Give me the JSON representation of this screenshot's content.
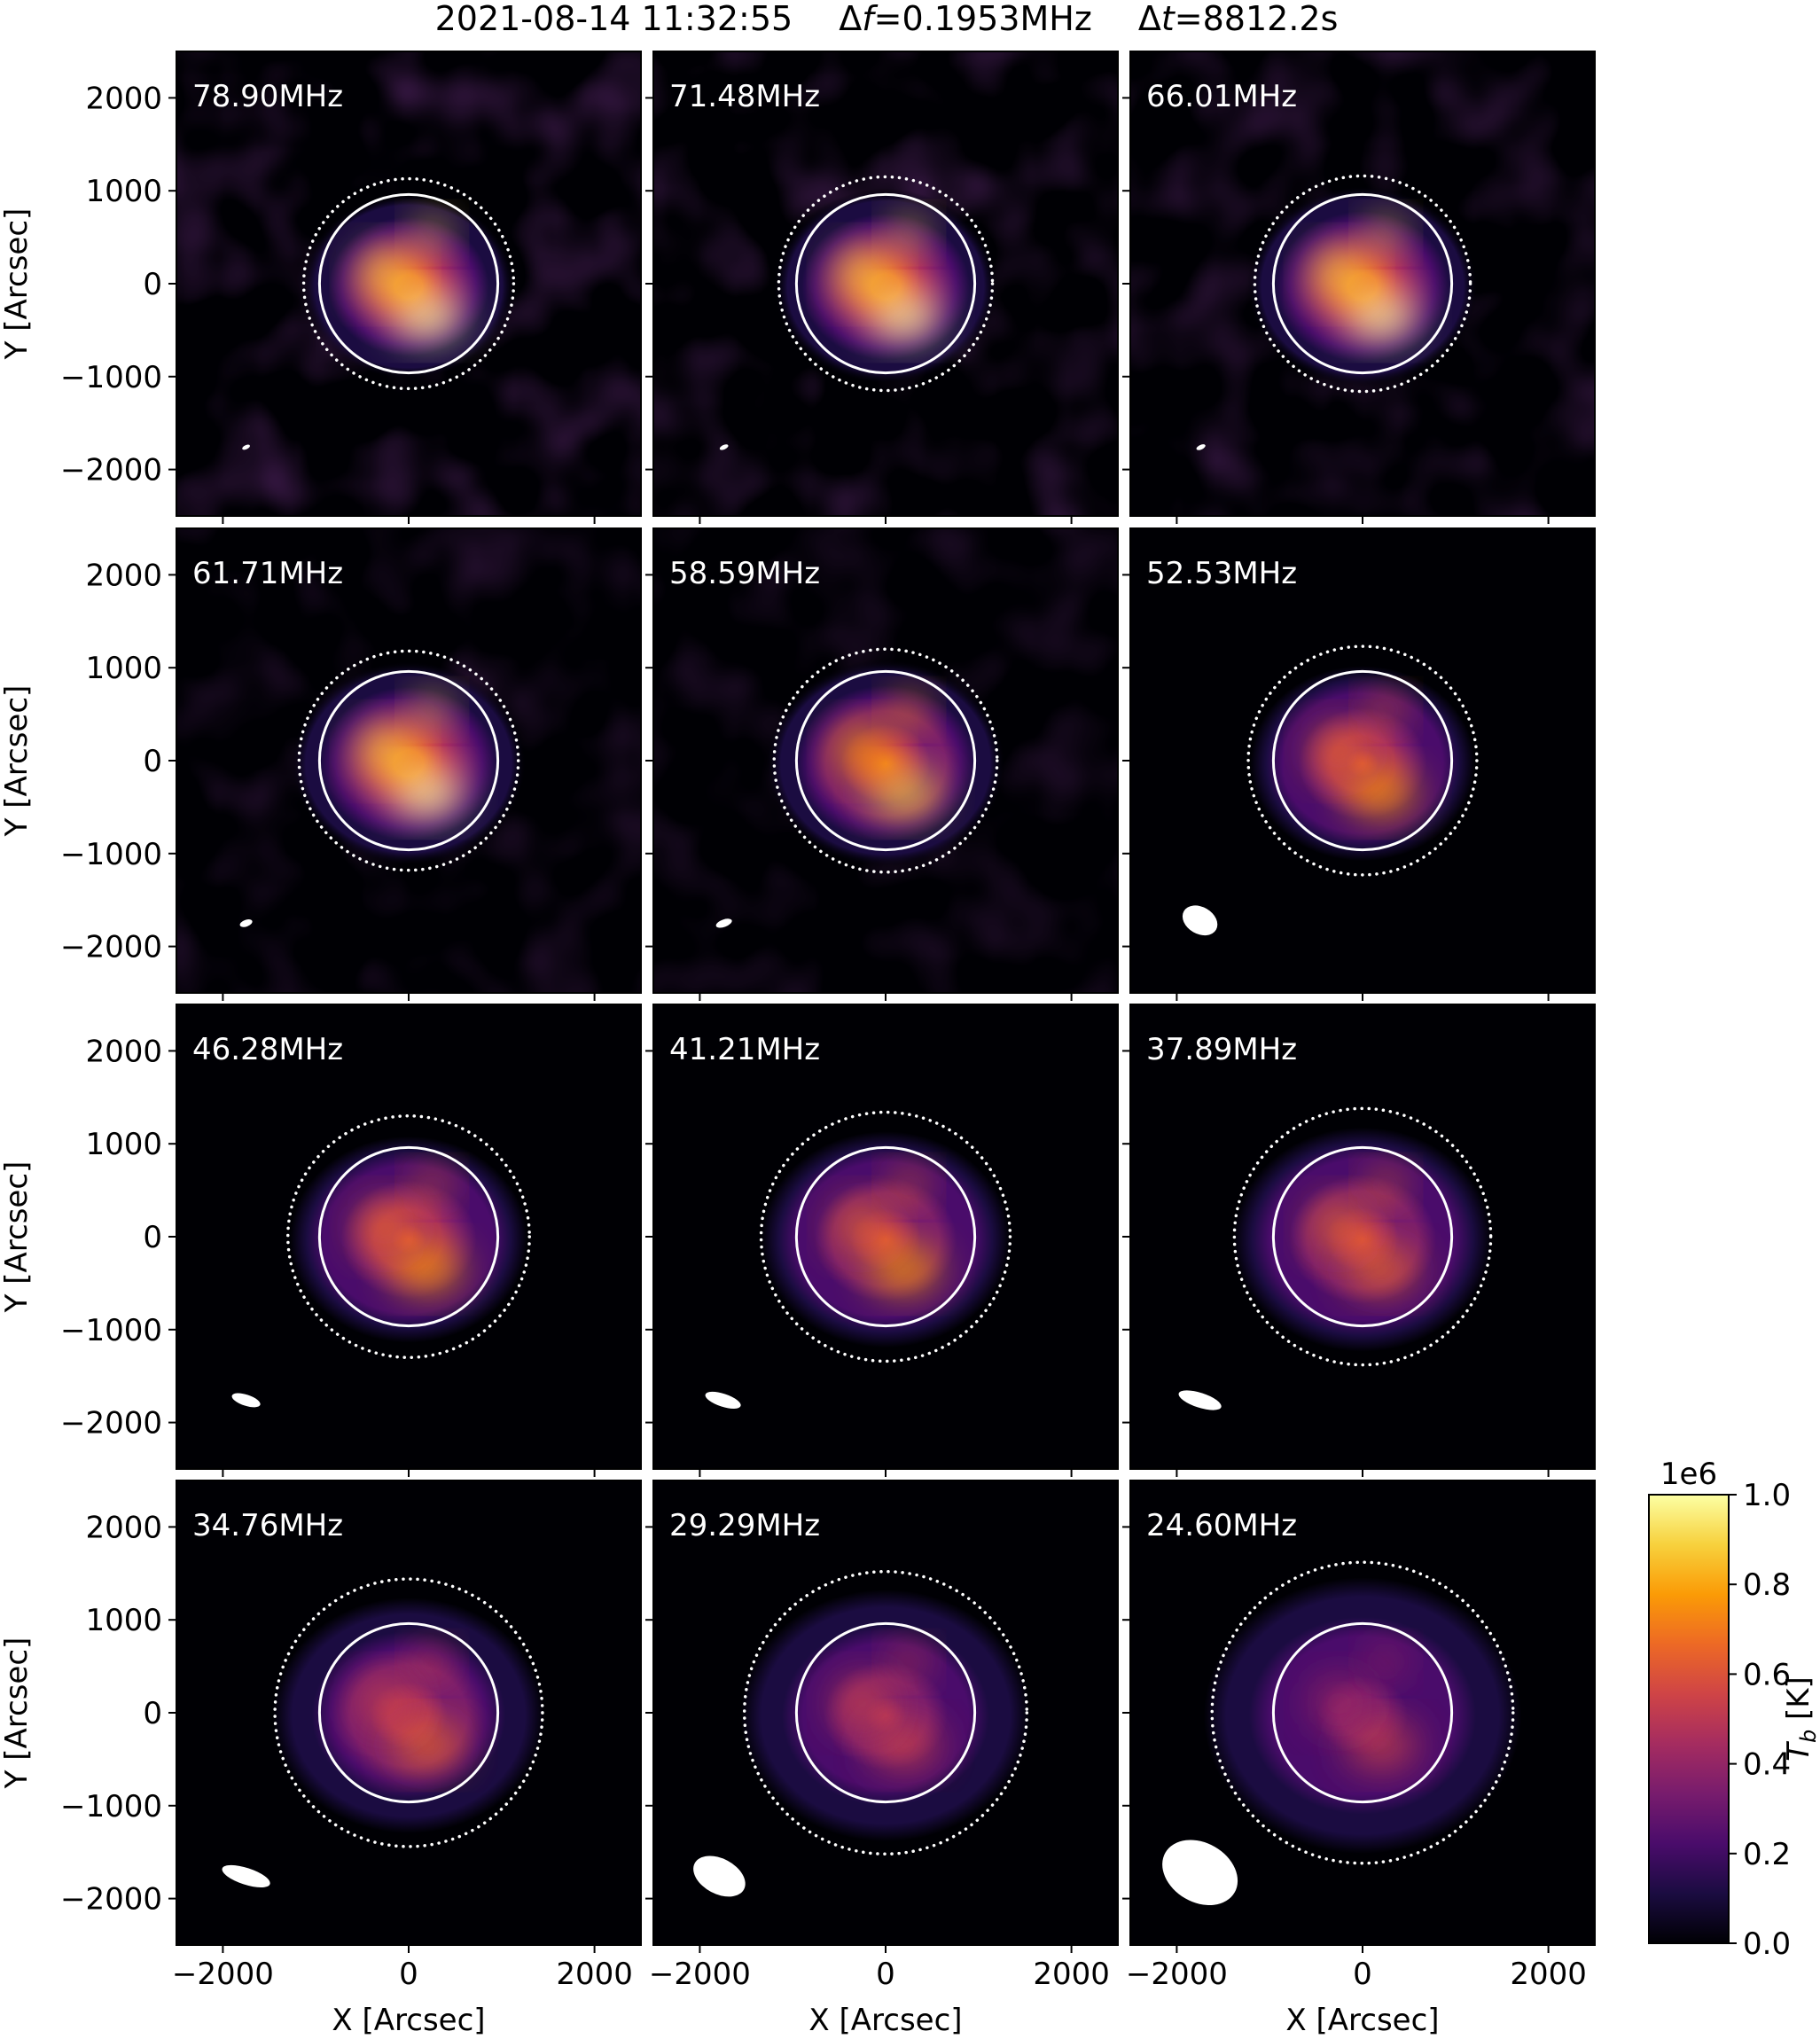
{
  "title": {
    "date": "2021-08-14 11:32:55",
    "df_symbol": "Δ",
    "df_var": "f",
    "df_value": "=0.1953MHz",
    "dt_symbol": "Δ",
    "dt_var": "t",
    "dt_value": "=8812.2s"
  },
  "axes": {
    "xlabel": "X [Arcsec]",
    "ylabel": "Y [Arcsec]",
    "xlim": [
      -2500,
      2500
    ],
    "ylim": [
      -2500,
      2500
    ],
    "xticks": [
      -2000,
      0,
      2000
    ],
    "yticks": [
      -2000,
      -1000,
      0,
      1000,
      2000
    ],
    "xtick_labels": [
      "−2000",
      "0",
      "2000"
    ],
    "ytick_labels": [
      "−2000",
      "−1000",
      "0",
      "1000",
      "2000"
    ]
  },
  "colorbar": {
    "label_var": "T",
    "label_sub": "b",
    "label_unit": " [K]",
    "exponent": "1e6",
    "ticks": [
      0.0,
      0.2,
      0.4,
      0.6,
      0.8,
      1.0
    ],
    "tick_labels": [
      "0.0",
      "0.2",
      "0.4",
      "0.6",
      "0.8",
      "1.0"
    ],
    "colormap": "inferno",
    "stops": [
      "#000004",
      "#1b0c41",
      "#4a0c6b",
      "#781c6d",
      "#a52c60",
      "#cf4446",
      "#ed6925",
      "#fb9b06",
      "#f7d13d",
      "#fcffa4"
    ]
  },
  "chart_data": {
    "type": "heatmap",
    "rows": 4,
    "cols": 3,
    "solar_disk_radius_arcsec": 960,
    "panels": [
      {
        "freq_label": "78.90MHz",
        "dotted_radius": 1130,
        "beam": {
          "x": -1750,
          "y": -1760,
          "a": 45,
          "b": 22,
          "angle": -25
        },
        "peak": 1.0,
        "spread": 1.0,
        "noise": 0.55
      },
      {
        "freq_label": "71.48MHz",
        "dotted_radius": 1150,
        "beam": {
          "x": -1740,
          "y": -1760,
          "a": 50,
          "b": 24,
          "angle": -25
        },
        "peak": 1.0,
        "spread": 1.05,
        "noise": 0.5
      },
      {
        "freq_label": "66.01MHz",
        "dotted_radius": 1160,
        "beam": {
          "x": -1740,
          "y": -1760,
          "a": 52,
          "b": 25,
          "angle": -25
        },
        "peak": 1.0,
        "spread": 1.08,
        "noise": 0.45
      },
      {
        "freq_label": "61.71MHz",
        "dotted_radius": 1180,
        "beam": {
          "x": -1750,
          "y": -1750,
          "a": 70,
          "b": 36,
          "angle": -20
        },
        "peak": 1.0,
        "spread": 1.1,
        "noise": 0.35
      },
      {
        "freq_label": "58.59MHz",
        "dotted_radius": 1200,
        "beam": {
          "x": -1740,
          "y": -1750,
          "a": 90,
          "b": 40,
          "angle": -20
        },
        "peak": 0.88,
        "spread": 1.12,
        "noise": 0.3
      },
      {
        "freq_label": "52.53MHz",
        "dotted_radius": 1230,
        "beam": {
          "x": -1750,
          "y": -1720,
          "a": 200,
          "b": 145,
          "angle": 30
        },
        "peak": 0.8,
        "spread": 1.2,
        "noise": 0.0
      },
      {
        "freq_label": "46.28MHz",
        "dotted_radius": 1300,
        "beam": {
          "x": -1750,
          "y": -1760,
          "a": 160,
          "b": 60,
          "angle": 18
        },
        "peak": 0.78,
        "spread": 1.27,
        "noise": 0.0
      },
      {
        "freq_label": "41.21MHz",
        "dotted_radius": 1340,
        "beam": {
          "x": -1750,
          "y": -1760,
          "a": 200,
          "b": 70,
          "angle": 18
        },
        "peak": 0.74,
        "spread": 1.33,
        "noise": 0.0
      },
      {
        "freq_label": "37.89MHz",
        "dotted_radius": 1380,
        "beam": {
          "x": -1750,
          "y": -1760,
          "a": 240,
          "b": 80,
          "angle": 18
        },
        "peak": 0.72,
        "spread": 1.38,
        "noise": 0.0
      },
      {
        "freq_label": "34.76MHz",
        "dotted_radius": 1440,
        "beam": {
          "x": -1750,
          "y": -1760,
          "a": 270,
          "b": 90,
          "angle": 18
        },
        "peak": 0.68,
        "spread": 1.45,
        "noise": 0.0
      },
      {
        "freq_label": "29.29MHz",
        "dotted_radius": 1520,
        "beam": {
          "x": -1790,
          "y": -1760,
          "a": 300,
          "b": 190,
          "angle": 28
        },
        "peak": 0.6,
        "spread": 1.55,
        "noise": 0.0
      },
      {
        "freq_label": "24.60MHz",
        "dotted_radius": 1620,
        "beam": {
          "x": -1750,
          "y": -1720,
          "a": 430,
          "b": 320,
          "angle": 30
        },
        "peak": 0.52,
        "spread": 1.7,
        "noise": 0.0
      }
    ]
  }
}
